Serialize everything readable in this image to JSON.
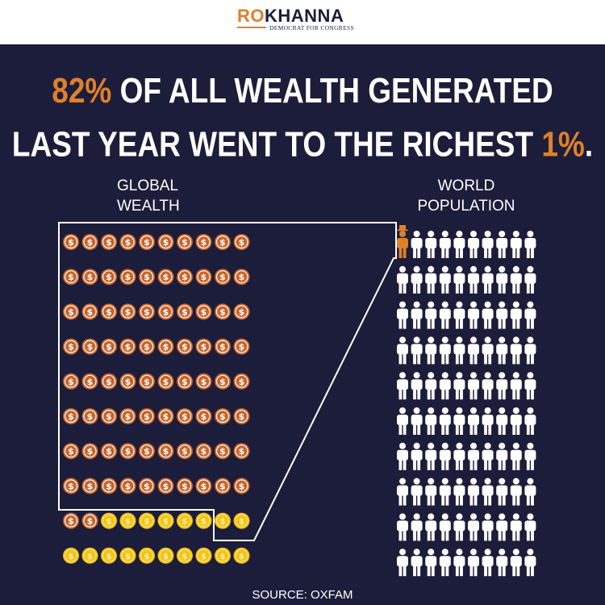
{
  "header": {
    "logo_ro": "RO",
    "logo_khanna": "KHANNA",
    "logo_subtitle": "DEMOCRAT FOR CONGRESS",
    "colors": {
      "orange": "#e0802a",
      "navy": "#1c1d3a",
      "white": "#ffffff"
    }
  },
  "headline": {
    "line1_highlight": "82%",
    "line1_rest": " OF ALL WEALTH GENERATED",
    "line2_rest": "LAST YEAR WENT TO THE RICHEST ",
    "line2_highlight": "1%",
    "line2_end": "."
  },
  "wealth": {
    "label_line1": "GLOBAL",
    "label_line2": "WEALTH",
    "rich_coins": 82,
    "total_coins": 100,
    "coin_symbol": "$",
    "colors": {
      "rich_coin": "#c8642a",
      "rest_coin": "#f2c318"
    }
  },
  "population": {
    "label_line1": "WORLD",
    "label_line2": "POPULATION",
    "rich_people": 1,
    "total_people": 100,
    "colors": {
      "rich_person": "#e0802a",
      "rest_person": "#ffffff"
    }
  },
  "source": "SOURCE: OXFAM"
}
